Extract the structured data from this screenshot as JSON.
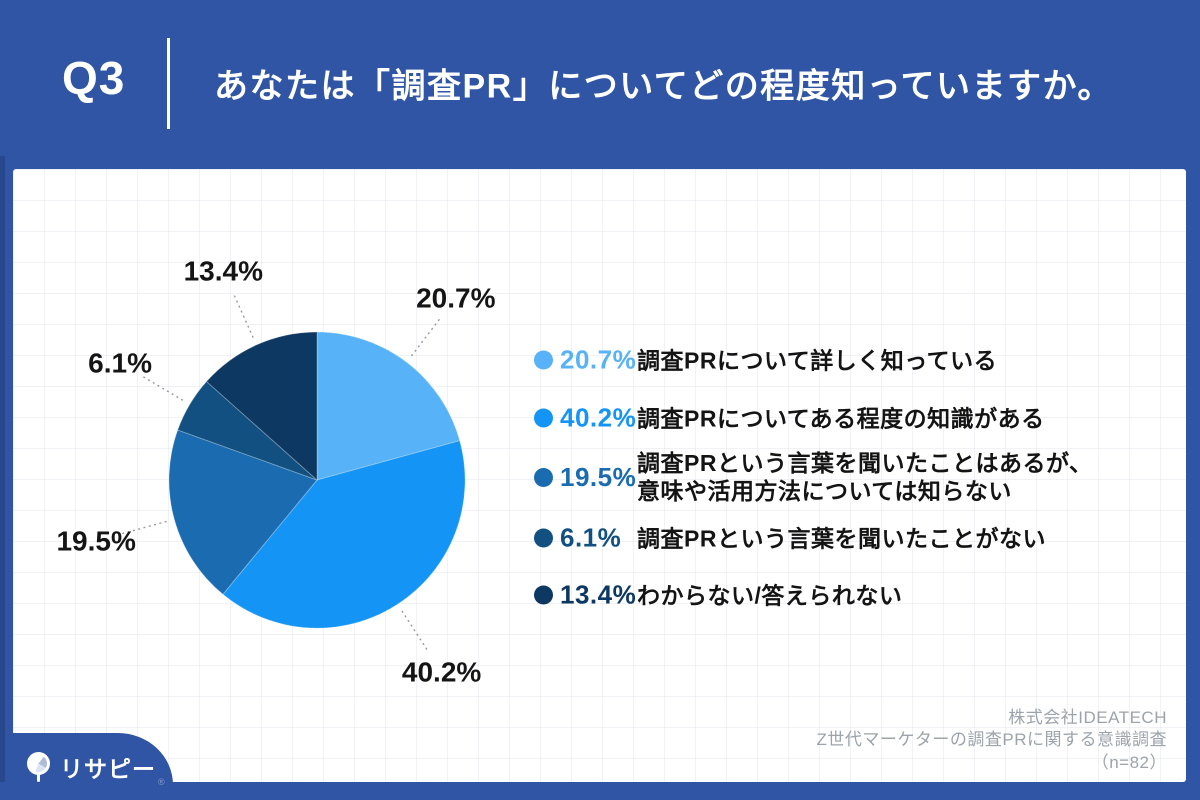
{
  "header": {
    "question_number": "Q3",
    "title": "あなたは「調査PR」についてどの程度知っていますか。"
  },
  "chart_data": {
    "type": "pie",
    "title": "あなたは「調査PR」についてどの程度知っていますか。",
    "sample_note": "（n=82）",
    "start_angle_deg": 0,
    "direction": "clockwise",
    "legend_position": "right",
    "slices": [
      {
        "value": 20.7,
        "display": "20.7%",
        "color": "#57B2F7",
        "label": "調査PRについて詳しく知っている",
        "label_lines": [
          "調査PRについて詳しく知っている"
        ]
      },
      {
        "value": 40.2,
        "display": "40.2%",
        "color": "#1494F4",
        "label": "調査PRについてある程度の知識がある",
        "label_lines": [
          "調査PRについてある程度の知識がある"
        ]
      },
      {
        "value": 19.5,
        "display": "19.5%",
        "color": "#1A6BB0",
        "label": "調査PRという言葉を聞いたことはあるが、意味や活用方法については知らない",
        "label_lines": [
          "調査PRという言葉を聞いたことはあるが、",
          "意味や活用方法については知らない"
        ]
      },
      {
        "value": 6.1,
        "display": "6.1%",
        "color": "#115080",
        "label": "調査PRという言葉を聞いたことがない",
        "label_lines": [
          "調査PRという言葉を聞いたことがない"
        ]
      },
      {
        "value": 13.4,
        "display": "13.4%",
        "color": "#0D3862",
        "label": "わからない/答えられない",
        "label_lines": [
          "わからない/答えられない"
        ]
      }
    ]
  },
  "footer": {
    "logo_text": "リサピー",
    "reg_mark": "®",
    "credits": [
      "株式会社IDEATECH",
      "Z世代マーケターの調査PRに関する意識調査",
      "（n=82）"
    ]
  },
  "colors": {
    "frame_blue": "#2F55A4",
    "card_bg": "#FFFFFF",
    "pie_label_text": "#151515",
    "legend_desc_text": "#141414",
    "credit_text": "#9DA3AB",
    "leader_line": "#9A9A9A"
  }
}
